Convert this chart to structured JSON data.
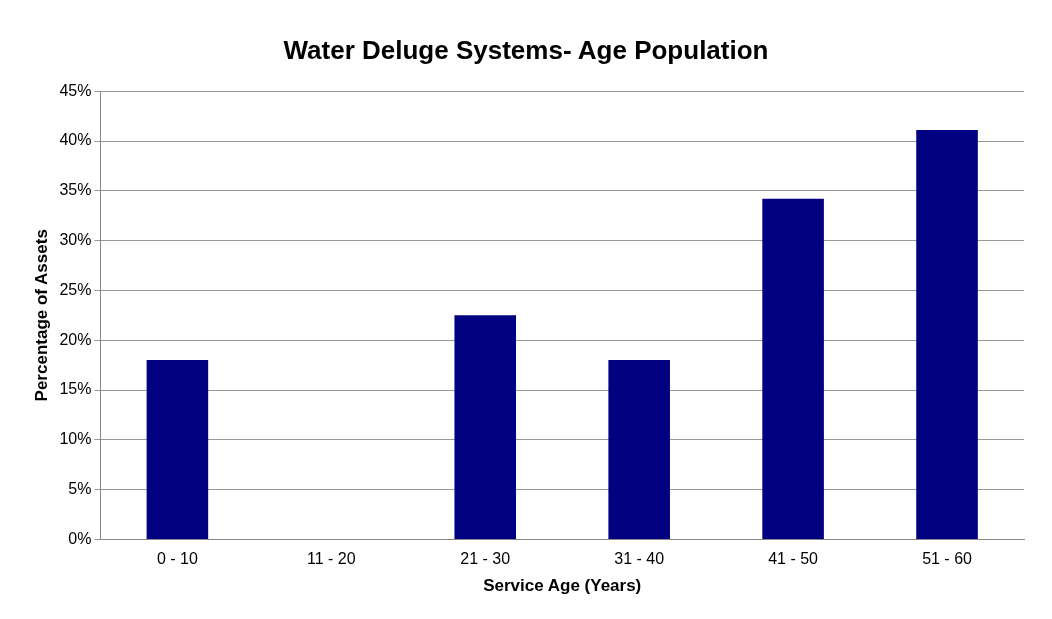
{
  "chart_data": {
    "type": "bar",
    "title": "Water Deluge Systems- Age Population",
    "xlabel": "Service Age (Years)",
    "ylabel": "Percentage of Assets",
    "categories": [
      "0 - 10",
      "11 - 20",
      "21 - 30",
      "31 - 40",
      "41 - 50",
      "51 - 60"
    ],
    "values": [
      18,
      0,
      22.5,
      18,
      34.2,
      41.1
    ],
    "color": "#000080",
    "ylim": [
      0,
      45
    ],
    "yticks": [
      {
        "value": 0,
        "label": "0%"
      },
      {
        "value": 5,
        "label": "5%"
      },
      {
        "value": 10,
        "label": "10%"
      },
      {
        "value": 15,
        "label": "15%"
      },
      {
        "value": 20,
        "label": "20%"
      },
      {
        "value": 25,
        "label": "25%"
      },
      {
        "value": 30,
        "label": "30%"
      },
      {
        "value": 35,
        "label": "35%"
      },
      {
        "value": 40,
        "label": "40%"
      },
      {
        "value": 45,
        "label": "45%"
      }
    ],
    "grid": "y",
    "legend": false
  }
}
